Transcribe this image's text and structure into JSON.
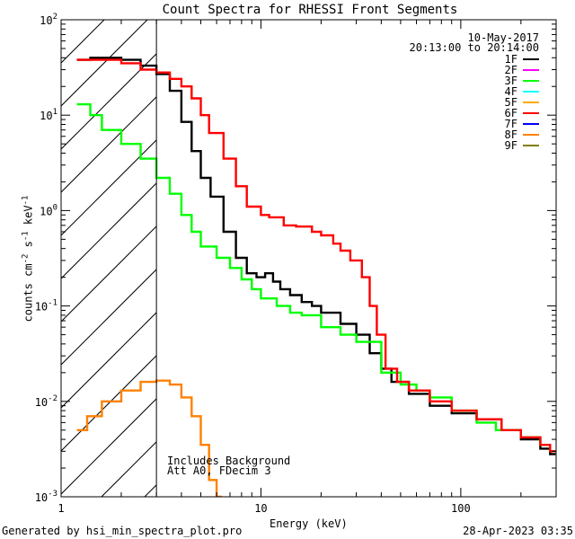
{
  "chart_data": {
    "type": "line",
    "title": "Count Spectra for RHESSI Front Segments",
    "xlabel": "Energy (keV)",
    "ylabel_parts": [
      "counts cm",
      "-2",
      " s",
      "-1",
      " keV",
      "-1"
    ],
    "xscale": "log",
    "yscale": "log",
    "xlim": [
      1,
      300
    ],
    "ylim": [
      0.001,
      100
    ],
    "x_ticks": [
      {
        "value": 1,
        "label": "1"
      },
      {
        "value": 10,
        "label": "10"
      },
      {
        "value": 100,
        "label": "100"
      }
    ],
    "y_ticks": [
      {
        "value": 0.001,
        "base": "10",
        "exp": "-3"
      },
      {
        "value": 0.01,
        "base": "10",
        "exp": "-2"
      },
      {
        "value": 0.1,
        "base": "10",
        "exp": "-1"
      },
      {
        "value": 1,
        "base": "10",
        "exp": "0"
      },
      {
        "value": 10,
        "base": "10",
        "exp": "1"
      },
      {
        "value": 100,
        "base": "10",
        "exp": "2"
      }
    ],
    "hatched_region_keV": [
      1,
      3
    ],
    "threshold_line_keV": 3,
    "date_text": "10-May-2017",
    "time_range_text": "20:13:00 to 20:14:00",
    "annotation_lines": [
      "Includes Background",
      "Att A0, FDecim 3"
    ],
    "legend": [
      {
        "label": "1F",
        "color": "#000000"
      },
      {
        "label": "2F",
        "color": "#ff00ff"
      },
      {
        "label": "3F",
        "color": "#00ff00"
      },
      {
        "label": "4F",
        "color": "#00ffff"
      },
      {
        "label": "5F",
        "color": "#ffaa00"
      },
      {
        "label": "6F",
        "color": "#ff0000"
      },
      {
        "label": "7F",
        "color": "#0000ff"
      },
      {
        "label": "8F",
        "color": "#ff8000"
      },
      {
        "label": "9F",
        "color": "#808000"
      }
    ],
    "series": [
      {
        "name": "1F",
        "color": "#000000",
        "points": [
          [
            1.2,
            38
          ],
          [
            1.4,
            40
          ],
          [
            1.6,
            40
          ],
          [
            2.0,
            38
          ],
          [
            2.5,
            33
          ],
          [
            3.0,
            27
          ],
          [
            3.5,
            18
          ],
          [
            4.0,
            8.5
          ],
          [
            4.5,
            4.2
          ],
          [
            5.0,
            2.2
          ],
          [
            5.6,
            1.4
          ],
          [
            6.5,
            0.6
          ],
          [
            7.5,
            0.32
          ],
          [
            8.5,
            0.22
          ],
          [
            9.5,
            0.2
          ],
          [
            10.5,
            0.22
          ],
          [
            11.5,
            0.18
          ],
          [
            12.5,
            0.15
          ],
          [
            14,
            0.13
          ],
          [
            16,
            0.11
          ],
          [
            18,
            0.1
          ],
          [
            20,
            0.085
          ],
          [
            25,
            0.065
          ],
          [
            30,
            0.05
          ],
          [
            35,
            0.032
          ],
          [
            40,
            0.022
          ],
          [
            45,
            0.016
          ],
          [
            55,
            0.012
          ],
          [
            70,
            0.009
          ],
          [
            90,
            0.0075
          ],
          [
            120,
            0.0065
          ],
          [
            160,
            0.005
          ],
          [
            200,
            0.004
          ],
          [
            250,
            0.0032
          ],
          [
            280,
            0.0028
          ]
        ]
      },
      {
        "name": "3F",
        "color": "#00ff00",
        "points": [
          [
            1.2,
            13
          ],
          [
            1.4,
            10
          ],
          [
            1.6,
            7
          ],
          [
            2.0,
            5
          ],
          [
            2.5,
            3.5
          ],
          [
            3.0,
            2.2
          ],
          [
            3.5,
            1.5
          ],
          [
            4.0,
            0.9
          ],
          [
            4.5,
            0.6
          ],
          [
            5.0,
            0.42
          ],
          [
            6.0,
            0.32
          ],
          [
            7.0,
            0.25
          ],
          [
            8.0,
            0.19
          ],
          [
            9.0,
            0.15
          ],
          [
            10,
            0.12
          ],
          [
            12,
            0.1
          ],
          [
            14,
            0.085
          ],
          [
            16,
            0.08
          ],
          [
            20,
            0.06
          ],
          [
            25,
            0.05
          ],
          [
            30,
            0.042
          ],
          [
            40,
            0.02
          ],
          [
            50,
            0.015
          ],
          [
            60,
            0.013
          ],
          [
            70,
            0.011
          ],
          [
            90,
            0.008
          ],
          [
            120,
            0.006
          ],
          [
            150,
            0.005
          ],
          [
            200,
            0.0042
          ],
          [
            250,
            0.0035
          ],
          [
            280,
            0.003
          ]
        ]
      },
      {
        "name": "6F",
        "color": "#ff0000",
        "points": [
          [
            1.2,
            38
          ],
          [
            1.5,
            38
          ],
          [
            2.0,
            35
          ],
          [
            2.5,
            30
          ],
          [
            3.0,
            28
          ],
          [
            3.5,
            24
          ],
          [
            4.0,
            20
          ],
          [
            4.5,
            15
          ],
          [
            5.0,
            10
          ],
          [
            5.5,
            6.5
          ],
          [
            6.5,
            3.5
          ],
          [
            7.5,
            1.8
          ],
          [
            8.5,
            1.1
          ],
          [
            10,
            0.9
          ],
          [
            11,
            0.85
          ],
          [
            13,
            0.7
          ],
          [
            15,
            0.68
          ],
          [
            18,
            0.6
          ],
          [
            20,
            0.55
          ],
          [
            23,
            0.45
          ],
          [
            25,
            0.38
          ],
          [
            28,
            0.3
          ],
          [
            32,
            0.2
          ],
          [
            35,
            0.1
          ],
          [
            38,
            0.05
          ],
          [
            42,
            0.022
          ],
          [
            48,
            0.016
          ],
          [
            55,
            0.013
          ],
          [
            70,
            0.01
          ],
          [
            90,
            0.008
          ],
          [
            120,
            0.0065
          ],
          [
            160,
            0.005
          ],
          [
            200,
            0.0042
          ],
          [
            250,
            0.0035
          ],
          [
            280,
            0.003
          ]
        ]
      },
      {
        "name": "8F",
        "color": "#ff8000",
        "points": [
          [
            1.2,
            0.005
          ],
          [
            1.35,
            0.007
          ],
          [
            1.6,
            0.01
          ],
          [
            2.0,
            0.013
          ],
          [
            2.5,
            0.016
          ],
          [
            3.0,
            0.0165
          ],
          [
            3.5,
            0.015
          ],
          [
            4.0,
            0.011
          ],
          [
            4.5,
            0.007
          ],
          [
            5.0,
            0.0035
          ],
          [
            5.5,
            0.0015
          ],
          [
            6.0,
            0.001
          ]
        ]
      }
    ]
  },
  "footer": {
    "left_text": "Generated by hsi_min_spectra_plot.pro",
    "right_text": "28-Apr-2023 03:35"
  }
}
